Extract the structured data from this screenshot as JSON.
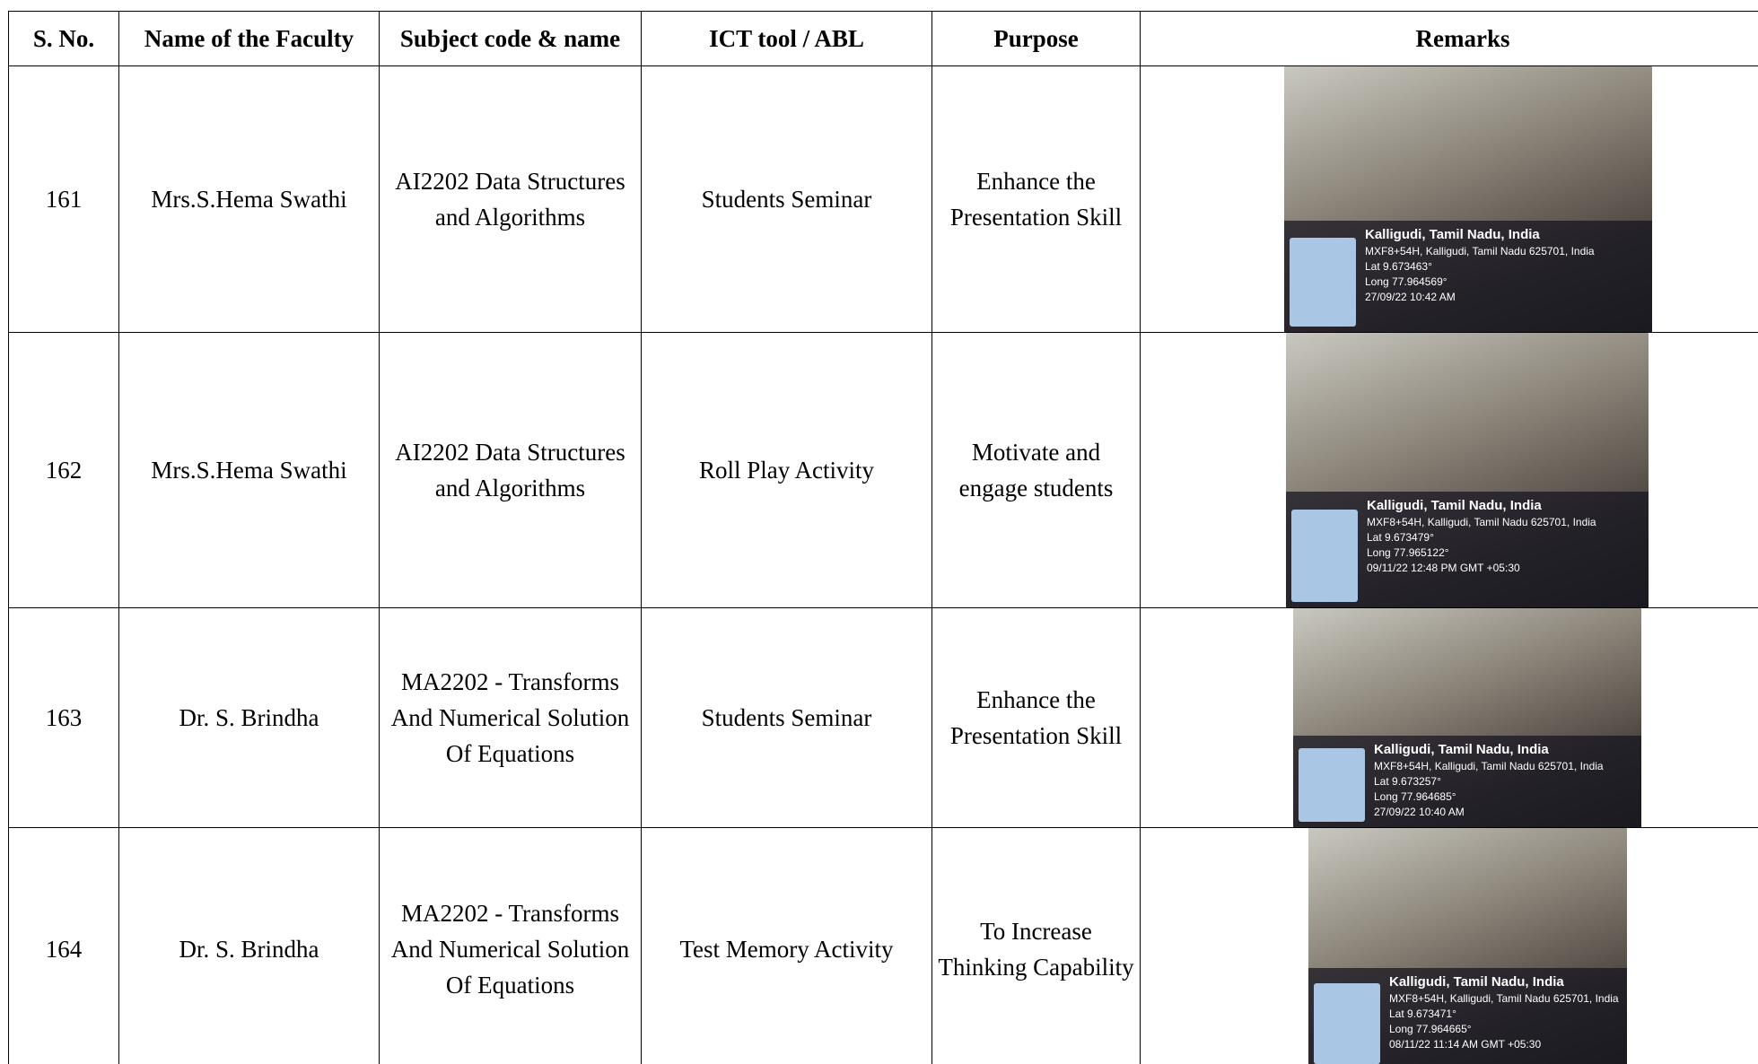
{
  "table": {
    "headers": [
      "S. No.",
      "Name of the Faculty",
      "Subject code &  name",
      "ICT tool / ABL",
      "Purpose",
      "Remarks"
    ],
    "rows": [
      {
        "sno": "161",
        "faculty": "Mrs.S.Hema Swathi",
        "subject": "AI2202 Data Structures and Algorithms",
        "tool": "Students Seminar",
        "purpose": "Enhance the Presentation Skill",
        "photo_stamp": [
          "Kalligudi, Tamil Nadu, India",
          "MXF8+54H, Kalligudi, Tamil Nadu 625701, India",
          "Lat 9.673463°",
          "Long 77.964569°",
          "27/09/22 10:42 AM"
        ]
      },
      {
        "sno": "162",
        "faculty": "Mrs.S.Hema Swathi",
        "subject": "AI2202 Data Structures and Algorithms",
        "tool": "Roll Play Activity",
        "purpose": "Motivate and engage students",
        "photo_stamp": [
          "Kalligudi, Tamil Nadu, India",
          "MXF8+54H, Kalligudi, Tamil Nadu 625701, India",
          "Lat 9.673479°",
          "Long 77.965122°",
          "09/11/22 12:48 PM GMT +05:30"
        ]
      },
      {
        "sno": "163",
        "faculty": "Dr. S. Brindha",
        "subject": "MA2202 - Transforms And Numerical Solution Of Equations",
        "tool": "Students Seminar",
        "purpose": "Enhance the Presentation Skill",
        "photo_stamp": [
          "Kalligudi, Tamil Nadu, India",
          "MXF8+54H, Kalligudi, Tamil Nadu 625701, India",
          "Lat 9.673257°",
          "Long 77.964685°",
          "27/09/22 10:40 AM"
        ]
      },
      {
        "sno": "164",
        "faculty": "Dr. S. Brindha",
        "subject": "MA2202 - Transforms And Numerical Solution Of Equations",
        "tool": "Test Memory Activity",
        "purpose": "To Increase Thinking Capability",
        "photo_stamp": [
          "Kalligudi, Tamil Nadu, India",
          "MXF8+54H, Kalligudi, Tamil Nadu 625701, India",
          "Lat 9.673471°",
          "Long 77.964665°",
          "08/11/22 11:14 AM GMT +05:30"
        ]
      }
    ]
  }
}
